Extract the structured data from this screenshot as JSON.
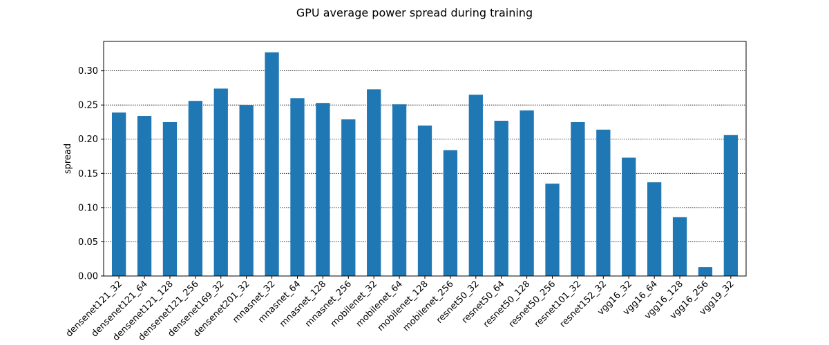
{
  "chart_data": {
    "type": "bar",
    "title": "GPU average power spread during training",
    "xlabel": "",
    "ylabel": "spread",
    "ylim": [
      0,
      0.343
    ],
    "yticks": [
      "0.00",
      "0.05",
      "0.10",
      "0.15",
      "0.20",
      "0.25",
      "0.30"
    ],
    "grid": "y-dotted",
    "bar_color": "#1f77b4",
    "categories": [
      "densenet121_32",
      "densenet121_64",
      "densenet121_128",
      "densenet121_256",
      "densenet169_32",
      "densenet201_32",
      "mnasnet_32",
      "mnasnet_64",
      "mnasnet_128",
      "mnasnet_256",
      "mobilenet_32",
      "mobilenet_64",
      "mobilenet_128",
      "mobilenet_256",
      "resnet50_32",
      "resnet50_64",
      "resnet50_128",
      "resnet50_256",
      "resnet101_32",
      "resnet152_32",
      "vgg16_32",
      "vgg16_64",
      "vgg16_128",
      "vgg16_256",
      "vgg19_32"
    ],
    "values": [
      0.239,
      0.234,
      0.225,
      0.256,
      0.274,
      0.25,
      0.327,
      0.26,
      0.253,
      0.229,
      0.273,
      0.251,
      0.22,
      0.184,
      0.265,
      0.227,
      0.242,
      0.135,
      0.225,
      0.214,
      0.173,
      0.137,
      0.086,
      0.013,
      0.206
    ]
  }
}
